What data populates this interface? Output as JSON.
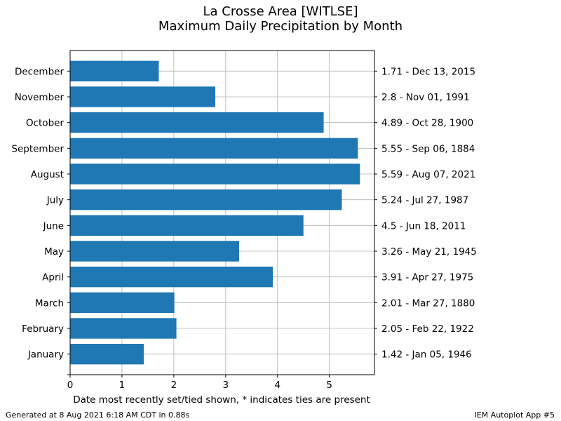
{
  "chart_data": {
    "type": "bar",
    "orientation": "horizontal",
    "title": [
      "La Crosse Area [WITLSE]",
      "Maximum Daily Precipitation by Month"
    ],
    "xlabel": "Date most recently set/tied shown, * indicates ties are present",
    "ylabel": "",
    "xlim": [
      0,
      5.87
    ],
    "xticks": [
      0,
      1,
      2,
      3,
      4,
      5
    ],
    "grid": true,
    "bar_color": "#1f77b4",
    "categories": [
      "January",
      "February",
      "March",
      "April",
      "May",
      "June",
      "July",
      "August",
      "September",
      "October",
      "November",
      "December"
    ],
    "values": [
      1.42,
      2.05,
      2.01,
      3.91,
      3.26,
      4.5,
      5.24,
      5.59,
      5.55,
      4.89,
      2.8,
      1.71
    ],
    "right_labels": [
      "1.42 - Jan 05, 1946",
      "2.05 - Feb 22, 1922",
      "2.01 - Mar 27, 1880",
      "3.91 - Apr 27, 1975",
      "3.26 - May 21, 1945",
      "4.5 - Jun 18, 2011",
      "5.24 - Jul 27, 1987",
      "5.59 - Aug 07, 2021",
      "5.55 - Sep 06, 1884",
      "4.89 - Oct 28, 1900",
      "2.8 - Nov 01, 1991",
      "1.71 - Dec 13, 2015"
    ]
  },
  "footer": {
    "left": "Generated at 8 Aug 2021 6:18 AM CDT in 0.88s",
    "right": "IEM Autoplot App #5"
  }
}
